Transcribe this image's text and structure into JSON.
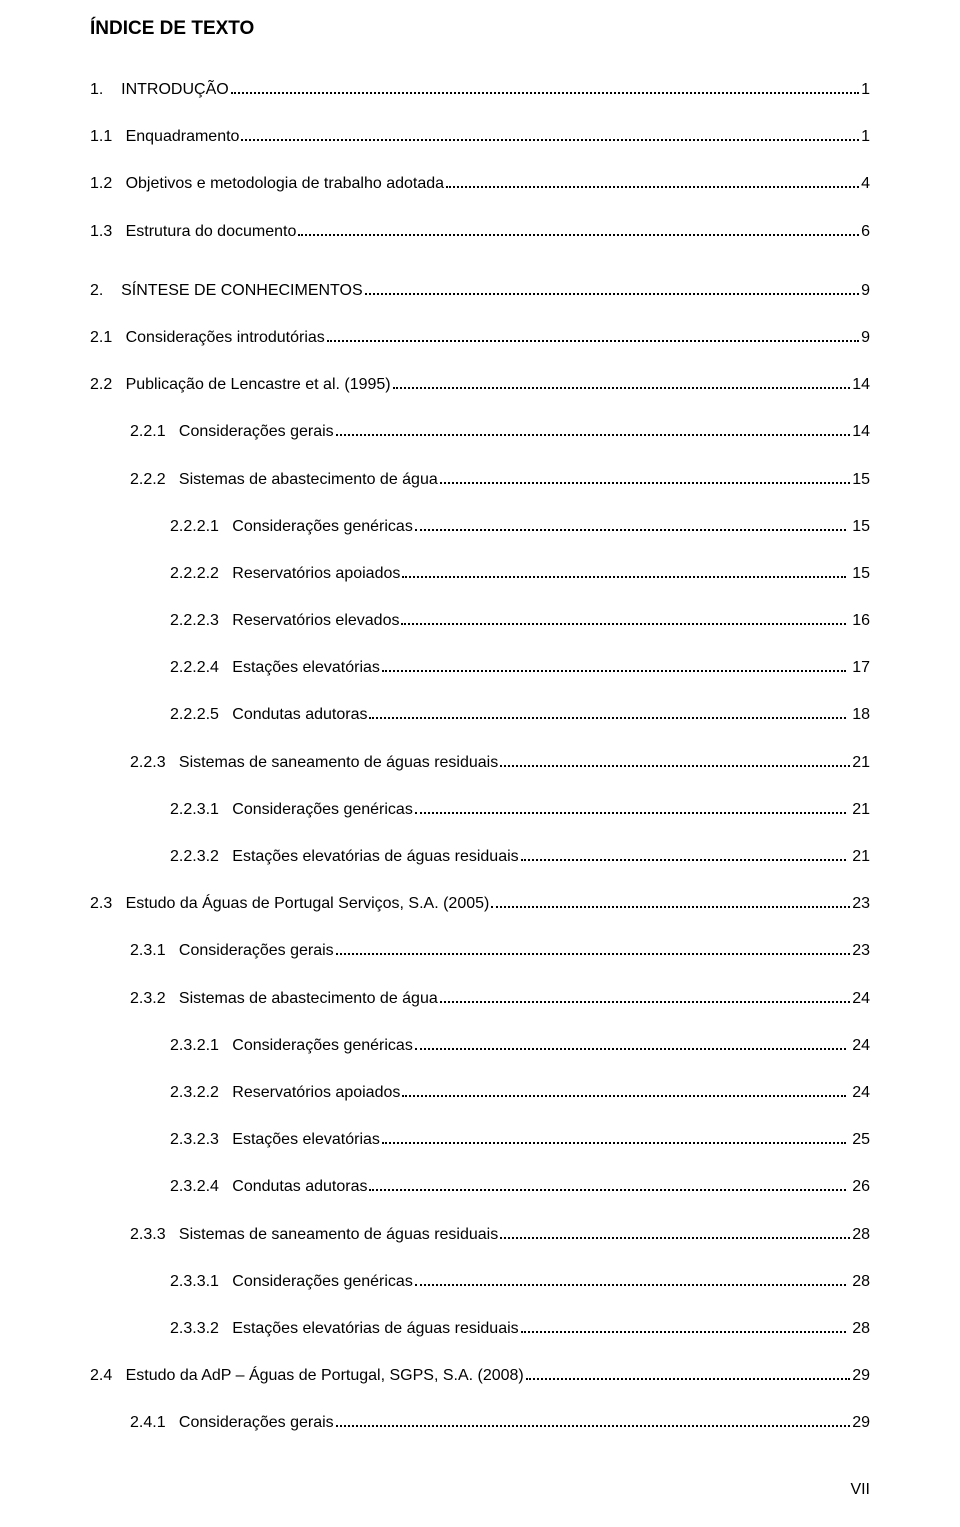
{
  "title": "ÍNDICE DE TEXTO",
  "page_number": "VII",
  "text_color": "#000000",
  "background_color": "#ffffff",
  "font_family": "Arial, Helvetica, sans-serif",
  "entries": [
    {
      "level": 1,
      "num": "1.",
      "label": "INTRODUÇÃO",
      "page": "1",
      "extra_gap": false
    },
    {
      "level": 2,
      "num": "1.1",
      "label": "Enquadramento",
      "page": "1",
      "extra_gap": false
    },
    {
      "level": 2,
      "num": "1.2",
      "label": "Objetivos e metodologia de trabalho adotada",
      "page": "4",
      "extra_gap": false
    },
    {
      "level": 2,
      "num": "1.3",
      "label": "Estrutura do documento",
      "page": "6",
      "extra_gap": false
    },
    {
      "level": 1,
      "num": "2.",
      "label": "SÍNTESE DE CONHECIMENTOS",
      "page": "9",
      "extra_gap": true
    },
    {
      "level": 2,
      "num": "2.1",
      "label": "Considerações introdutórias",
      "page": "9",
      "extra_gap": false
    },
    {
      "level": 2,
      "num": "2.2",
      "label": "Publicação de Lencastre et al. (1995)",
      "page": "14",
      "extra_gap": false
    },
    {
      "level": 3,
      "num": "2.2.1",
      "label": "Considerações gerais",
      "page": "14",
      "extra_gap": false
    },
    {
      "level": 3,
      "num": "2.2.2",
      "label": "Sistemas de abastecimento de água",
      "page": "15",
      "extra_gap": false
    },
    {
      "level": 4,
      "num": "2.2.2.1",
      "label": "Considerações genéricas",
      "page": " 15",
      "extra_gap": false
    },
    {
      "level": 4,
      "num": "2.2.2.2",
      "label": "Reservatórios apoiados",
      "page": " 15",
      "extra_gap": false
    },
    {
      "level": 4,
      "num": "2.2.2.3",
      "label": "Reservatórios elevados",
      "page": " 16",
      "extra_gap": false
    },
    {
      "level": 4,
      "num": "2.2.2.4",
      "label": "Estações elevatórias",
      "page": " 17",
      "extra_gap": false
    },
    {
      "level": 4,
      "num": "2.2.2.5",
      "label": "Condutas adutoras",
      "page": " 18",
      "extra_gap": false
    },
    {
      "level": 3,
      "num": "2.2.3",
      "label": "Sistemas de saneamento de águas residuais",
      "page": "21",
      "extra_gap": false
    },
    {
      "level": 4,
      "num": "2.2.3.1",
      "label": "Considerações genéricas",
      "page": " 21",
      "extra_gap": false
    },
    {
      "level": 4,
      "num": "2.2.3.2",
      "label": "Estações elevatórias de águas residuais",
      "page": " 21",
      "extra_gap": false
    },
    {
      "level": 2,
      "num": "2.3",
      "label": "Estudo da Águas de Portugal Serviços, S.A. (2005)",
      "page": "23",
      "extra_gap": false
    },
    {
      "level": 3,
      "num": "2.3.1",
      "label": "Considerações gerais",
      "page": "23",
      "extra_gap": false
    },
    {
      "level": 3,
      "num": "2.3.2",
      "label": "Sistemas de abastecimento de água",
      "page": "24",
      "extra_gap": false
    },
    {
      "level": 4,
      "num": "2.3.2.1",
      "label": "Considerações genéricas",
      "page": " 24",
      "extra_gap": false
    },
    {
      "level": 4,
      "num": "2.3.2.2",
      "label": "Reservatórios apoiados",
      "page": " 24",
      "extra_gap": false
    },
    {
      "level": 4,
      "num": "2.3.2.3",
      "label": "Estações elevatórias",
      "page": " 25",
      "extra_gap": false
    },
    {
      "level": 4,
      "num": "2.3.2.4",
      "label": "Condutas adutoras",
      "page": " 26",
      "extra_gap": false
    },
    {
      "level": 3,
      "num": "2.3.3",
      "label": "Sistemas de saneamento de águas residuais",
      "page": "28",
      "extra_gap": false
    },
    {
      "level": 4,
      "num": "2.3.3.1",
      "label": "Considerações genéricas",
      "page": " 28",
      "extra_gap": false
    },
    {
      "level": 4,
      "num": "2.3.3.2",
      "label": "Estações elevatórias de águas residuais",
      "page": " 28",
      "extra_gap": false
    },
    {
      "level": 2,
      "num": "2.4",
      "label": "Estudo da AdP – Águas de Portugal, SGPS, S.A. (2008)",
      "page": "29",
      "extra_gap": false
    },
    {
      "level": 3,
      "num": "2.4.1",
      "label": "Considerações gerais",
      "page": "29",
      "extra_gap": false
    }
  ],
  "num_col_widths": {
    "1": 6,
    "2": 6,
    "3": 8,
    "4": 10
  }
}
